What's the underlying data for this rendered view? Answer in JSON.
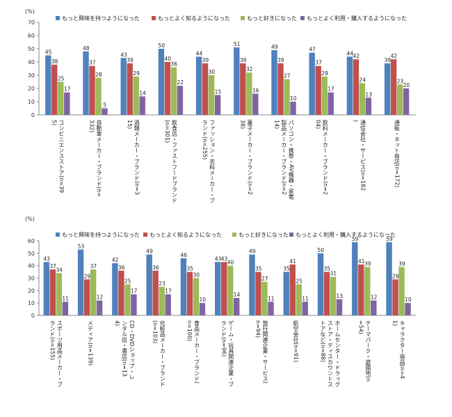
{
  "colors": [
    "#4f81bd",
    "#c0504d",
    "#9bbb59",
    "#8064a2"
  ],
  "chart_data": [
    {
      "type": "bar",
      "unit_label": "(%)",
      "ylim": [
        0,
        70
      ],
      "yticks": [
        0,
        10,
        20,
        30,
        40,
        50,
        60,
        70
      ],
      "grid": false,
      "legend_position": "top",
      "categories": [
        "コンビニエンスストア(n=395)",
        "自動車メーカー・ブランド(n=332)",
        "酒類メーカー・ブランド(n=315)",
        "飲食店・ファストフードブランド(n=301)",
        "ファッション・衣料メーカー・ブランド(n=255)",
        "菓子メーカー・ブランド(n=238)",
        "パソコン・携帯・AV機器・家電製品メーカー・ブランド(n=214)",
        "飲料メーカー・ブランド(n=204)",
        "通信会社・サービス(n=182)",
        "通販・ネット商店(n=172)"
      ],
      "series": [
        {
          "name": "もっと興味を持つようになった",
          "values": [
            45,
            48,
            43,
            50,
            44,
            51,
            49,
            47,
            44,
            39
          ]
        },
        {
          "name": "もっとよく知るようになった",
          "values": [
            38,
            37,
            39,
            40,
            39,
            39,
            39,
            37,
            42,
            42
          ]
        },
        {
          "name": "もっと好きになった",
          "values": [
            25,
            28,
            29,
            36,
            30,
            32,
            27,
            29,
            24,
            23
          ]
        },
        {
          "name": "もっとよく利用・購入するようになった",
          "values": [
            17,
            5,
            14,
            22,
            15,
            16,
            10,
            17,
            13,
            20
          ]
        }
      ]
    },
    {
      "type": "bar",
      "unit_label": "(%)",
      "ylim": [
        0,
        60
      ],
      "yticks": [
        0,
        10,
        20,
        30,
        40,
        50,
        60
      ],
      "grid": false,
      "legend_position": "top",
      "categories": [
        "スポーツ用品メーカー・ブランド(n=155)",
        "メディア(n=139)",
        "CD・DVDショップ・レンタル店・書店(n=134)",
        "化粧品メーカー・ブランド(n=103)",
        "食品メーカー・ブランド(n=100)",
        "ゲーム・玩具関連企業・ブランド(n=96)",
        "旅行関連企業・サービス(n=94)",
        "航空会社(n=91)",
        "ホームセンター・ドラッグストア・ディスカウントストアなど(n=88)",
        "テーマパーク・遊園地(n=54)",
        "キャラクター商品(n=41)"
      ],
      "series": [
        {
          "name": "もっと興味を持つようになった",
          "values": [
            43,
            53,
            42,
            49,
            46,
            43,
            49,
            35,
            50,
            59,
            59
          ]
        },
        {
          "name": "もっとよく知るようになった",
          "values": [
            37,
            29,
            36,
            36,
            35,
            43,
            35,
            41,
            35,
            41,
            29
          ]
        },
        {
          "name": "もっと好きになった",
          "values": [
            34,
            37,
            25,
            23,
            30,
            40,
            27,
            25,
            31,
            39,
            39
          ]
        },
        {
          "name": "もっとよく利用・購入するようになった",
          "values": [
            11,
            12,
            17,
            17,
            10,
            14,
            11,
            11,
            13,
            12,
            10
          ]
        }
      ]
    }
  ]
}
